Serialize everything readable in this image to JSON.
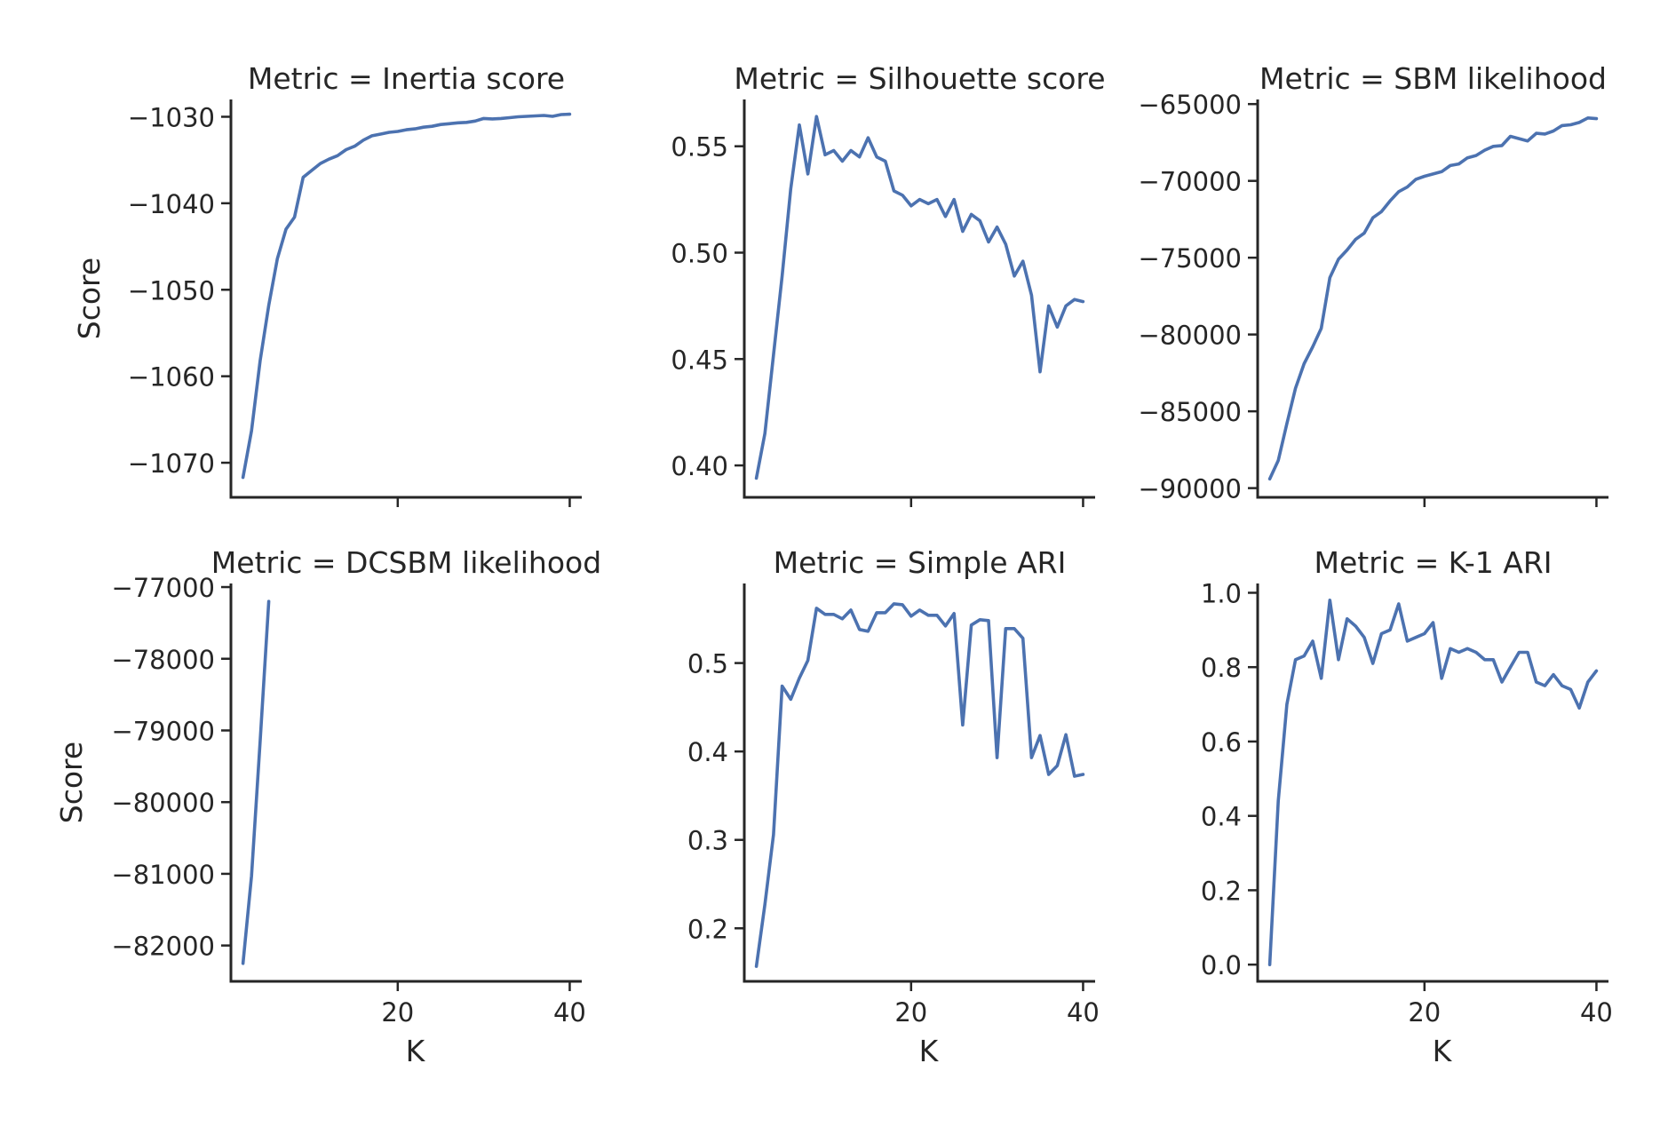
{
  "figure": {
    "shared_xlabel": "K",
    "shared_ylabel": "Score",
    "line_color": "#4c72b0"
  },
  "chart_data": [
    {
      "type": "line",
      "title": "Metric = Inertia score",
      "xlabel": "",
      "ylabel": "Score",
      "xlim": [
        0.6,
        41.4
      ],
      "ylim": [
        -1074.0,
        -1028.0
      ],
      "xticks": [
        20,
        40
      ],
      "show_xtick_labels": false,
      "yticks": [
        -1070,
        -1060,
        -1050,
        -1040,
        -1030
      ],
      "ytick_labels": [
        "−1070",
        "−1060",
        "−1050",
        "−1040",
        "−1030"
      ],
      "x": [
        2,
        3,
        4,
        5,
        6,
        7,
        8,
        9,
        10,
        11,
        12,
        13,
        14,
        15,
        16,
        17,
        18,
        19,
        20,
        21,
        22,
        23,
        24,
        25,
        26,
        27,
        28,
        29,
        30,
        31,
        32,
        33,
        34,
        35,
        36,
        37,
        38,
        39,
        40
      ],
      "y": [
        -1071.7,
        -1066.3,
        -1058.2,
        -1051.8,
        -1046.4,
        -1043.0,
        -1041.6,
        -1037.0,
        -1036.2,
        -1035.4,
        -1034.9,
        -1034.5,
        -1033.8,
        -1033.4,
        -1032.7,
        -1032.2,
        -1032.0,
        -1031.8,
        -1031.7,
        -1031.5,
        -1031.4,
        -1031.2,
        -1031.1,
        -1030.9,
        -1030.8,
        -1030.7,
        -1030.65,
        -1030.5,
        -1030.2,
        -1030.25,
        -1030.2,
        -1030.1,
        -1030.0,
        -1029.95,
        -1029.9,
        -1029.85,
        -1029.95,
        -1029.75,
        -1029.7
      ]
    },
    {
      "type": "line",
      "title": "Metric = Silhouette score",
      "xlabel": "",
      "ylabel": "",
      "xlim": [
        0.6,
        41.4
      ],
      "ylim": [
        0.385,
        0.572
      ],
      "xticks": [
        20,
        40
      ],
      "show_xtick_labels": false,
      "yticks": [
        0.4,
        0.45,
        0.5,
        0.55
      ],
      "ytick_labels": [
        "0.40",
        "0.45",
        "0.50",
        "0.55"
      ],
      "x": [
        2,
        3,
        4,
        5,
        6,
        7,
        8,
        9,
        10,
        11,
        12,
        13,
        14,
        15,
        16,
        17,
        18,
        19,
        20,
        21,
        22,
        23,
        24,
        25,
        26,
        27,
        28,
        29,
        30,
        31,
        32,
        33,
        34,
        35,
        36,
        37,
        38,
        39,
        40
      ],
      "y": [
        0.394,
        0.415,
        0.452,
        0.489,
        0.53,
        0.56,
        0.537,
        0.564,
        0.546,
        0.548,
        0.543,
        0.548,
        0.545,
        0.554,
        0.545,
        0.543,
        0.529,
        0.527,
        0.522,
        0.525,
        0.523,
        0.525,
        0.517,
        0.525,
        0.51,
        0.518,
        0.515,
        0.505,
        0.512,
        0.504,
        0.489,
        0.496,
        0.48,
        0.444,
        0.475,
        0.465,
        0.475,
        0.478,
        0.477
      ]
    },
    {
      "type": "line",
      "title": "Metric = SBM likelihood",
      "xlabel": "",
      "ylabel": "",
      "xlim": [
        0.6,
        41.4
      ],
      "ylim": [
        -90600,
        -64700
      ],
      "xticks": [
        20,
        40
      ],
      "show_xtick_labels": false,
      "yticks": [
        -90000,
        -85000,
        -80000,
        -75000,
        -70000,
        -65000
      ],
      "ytick_labels": [
        "−90000",
        "−85000",
        "−80000",
        "−75000",
        "−70000",
        "−65000"
      ],
      "x": [
        2,
        3,
        4,
        5,
        6,
        7,
        8,
        9,
        10,
        11,
        12,
        13,
        14,
        15,
        16,
        17,
        18,
        19,
        20,
        21,
        22,
        23,
        24,
        25,
        26,
        27,
        28,
        29,
        30,
        31,
        32,
        33,
        34,
        35,
        36,
        37,
        38,
        39,
        40
      ],
      "y": [
        -89400,
        -88200,
        -85800,
        -83500,
        -81900,
        -80800,
        -79600,
        -76300,
        -75100,
        -74500,
        -73800,
        -73400,
        -72400,
        -72000,
        -71300,
        -70700,
        -70400,
        -69900,
        -69700,
        -69550,
        -69400,
        -69000,
        -68900,
        -68500,
        -68350,
        -68000,
        -67750,
        -67700,
        -67100,
        -67250,
        -67400,
        -66900,
        -66950,
        -66750,
        -66400,
        -66350,
        -66200,
        -65900,
        -65950
      ]
    },
    {
      "type": "line",
      "title": "Metric = DCSBM likelihood",
      "xlabel": "K",
      "ylabel": "Score",
      "xlim": [
        0.6,
        41.4
      ],
      "ylim": [
        -82500,
        -76950
      ],
      "xticks": [
        20,
        40
      ],
      "show_xtick_labels": true,
      "xtick_labels": [
        "20",
        "40"
      ],
      "yticks": [
        -82000,
        -81000,
        -80000,
        -79000,
        -78000,
        -77000
      ],
      "ytick_labels": [
        "−82000",
        "−81000",
        "−80000",
        "−79000",
        "−78000",
        "−77000"
      ],
      "x": [
        2,
        3,
        4,
        5
      ],
      "y": [
        -82250,
        -81030,
        -79150,
        -77200
      ]
    },
    {
      "type": "line",
      "title": "Metric = Simple ARI",
      "xlabel": "K",
      "ylabel": "",
      "xlim": [
        0.6,
        41.4
      ],
      "ylim": [
        0.14,
        0.59
      ],
      "xticks": [
        20,
        40
      ],
      "show_xtick_labels": true,
      "xtick_labels": [
        "20",
        "40"
      ],
      "yticks": [
        0.2,
        0.3,
        0.4,
        0.5
      ],
      "ytick_labels": [
        "0.2",
        "0.3",
        "0.4",
        "0.5"
      ],
      "x": [
        2,
        3,
        4,
        5,
        6,
        7,
        8,
        9,
        10,
        11,
        12,
        13,
        14,
        15,
        16,
        17,
        18,
        19,
        20,
        21,
        22,
        23,
        24,
        25,
        26,
        27,
        28,
        29,
        30,
        31,
        32,
        33,
        34,
        35,
        36,
        37,
        38,
        39,
        40
      ],
      "y": [
        0.157,
        0.227,
        0.306,
        0.474,
        0.459,
        0.483,
        0.503,
        0.562,
        0.555,
        0.555,
        0.55,
        0.56,
        0.538,
        0.536,
        0.557,
        0.557,
        0.567,
        0.566,
        0.553,
        0.56,
        0.554,
        0.554,
        0.542,
        0.556,
        0.43,
        0.543,
        0.549,
        0.548,
        0.393,
        0.539,
        0.539,
        0.528,
        0.393,
        0.418,
        0.374,
        0.384,
        0.419,
        0.372,
        0.374
      ]
    },
    {
      "type": "line",
      "title": "Metric = K-1 ARI",
      "xlabel": "K",
      "ylabel": "",
      "xlim": [
        0.6,
        41.4
      ],
      "ylim": [
        -0.045,
        1.025
      ],
      "xticks": [
        20,
        40
      ],
      "show_xtick_labels": true,
      "xtick_labels": [
        "20",
        "40"
      ],
      "yticks": [
        0.0,
        0.2,
        0.4,
        0.6,
        0.8,
        1.0
      ],
      "ytick_labels": [
        "0.0",
        "0.2",
        "0.4",
        "0.6",
        "0.8",
        "1.0"
      ],
      "x": [
        2,
        3,
        4,
        5,
        6,
        7,
        8,
        9,
        10,
        11,
        12,
        13,
        14,
        15,
        16,
        17,
        18,
        19,
        20,
        21,
        22,
        23,
        24,
        25,
        26,
        27,
        28,
        29,
        30,
        31,
        32,
        33,
        34,
        35,
        36,
        37,
        38,
        39,
        40
      ],
      "y": [
        0.0,
        0.44,
        0.7,
        0.82,
        0.83,
        0.87,
        0.77,
        0.98,
        0.82,
        0.93,
        0.91,
        0.88,
        0.81,
        0.89,
        0.9,
        0.97,
        0.87,
        0.88,
        0.89,
        0.92,
        0.77,
        0.85,
        0.84,
        0.85,
        0.84,
        0.82,
        0.82,
        0.76,
        0.8,
        0.84,
        0.84,
        0.76,
        0.75,
        0.78,
        0.75,
        0.74,
        0.69,
        0.76,
        0.79
      ]
    }
  ]
}
